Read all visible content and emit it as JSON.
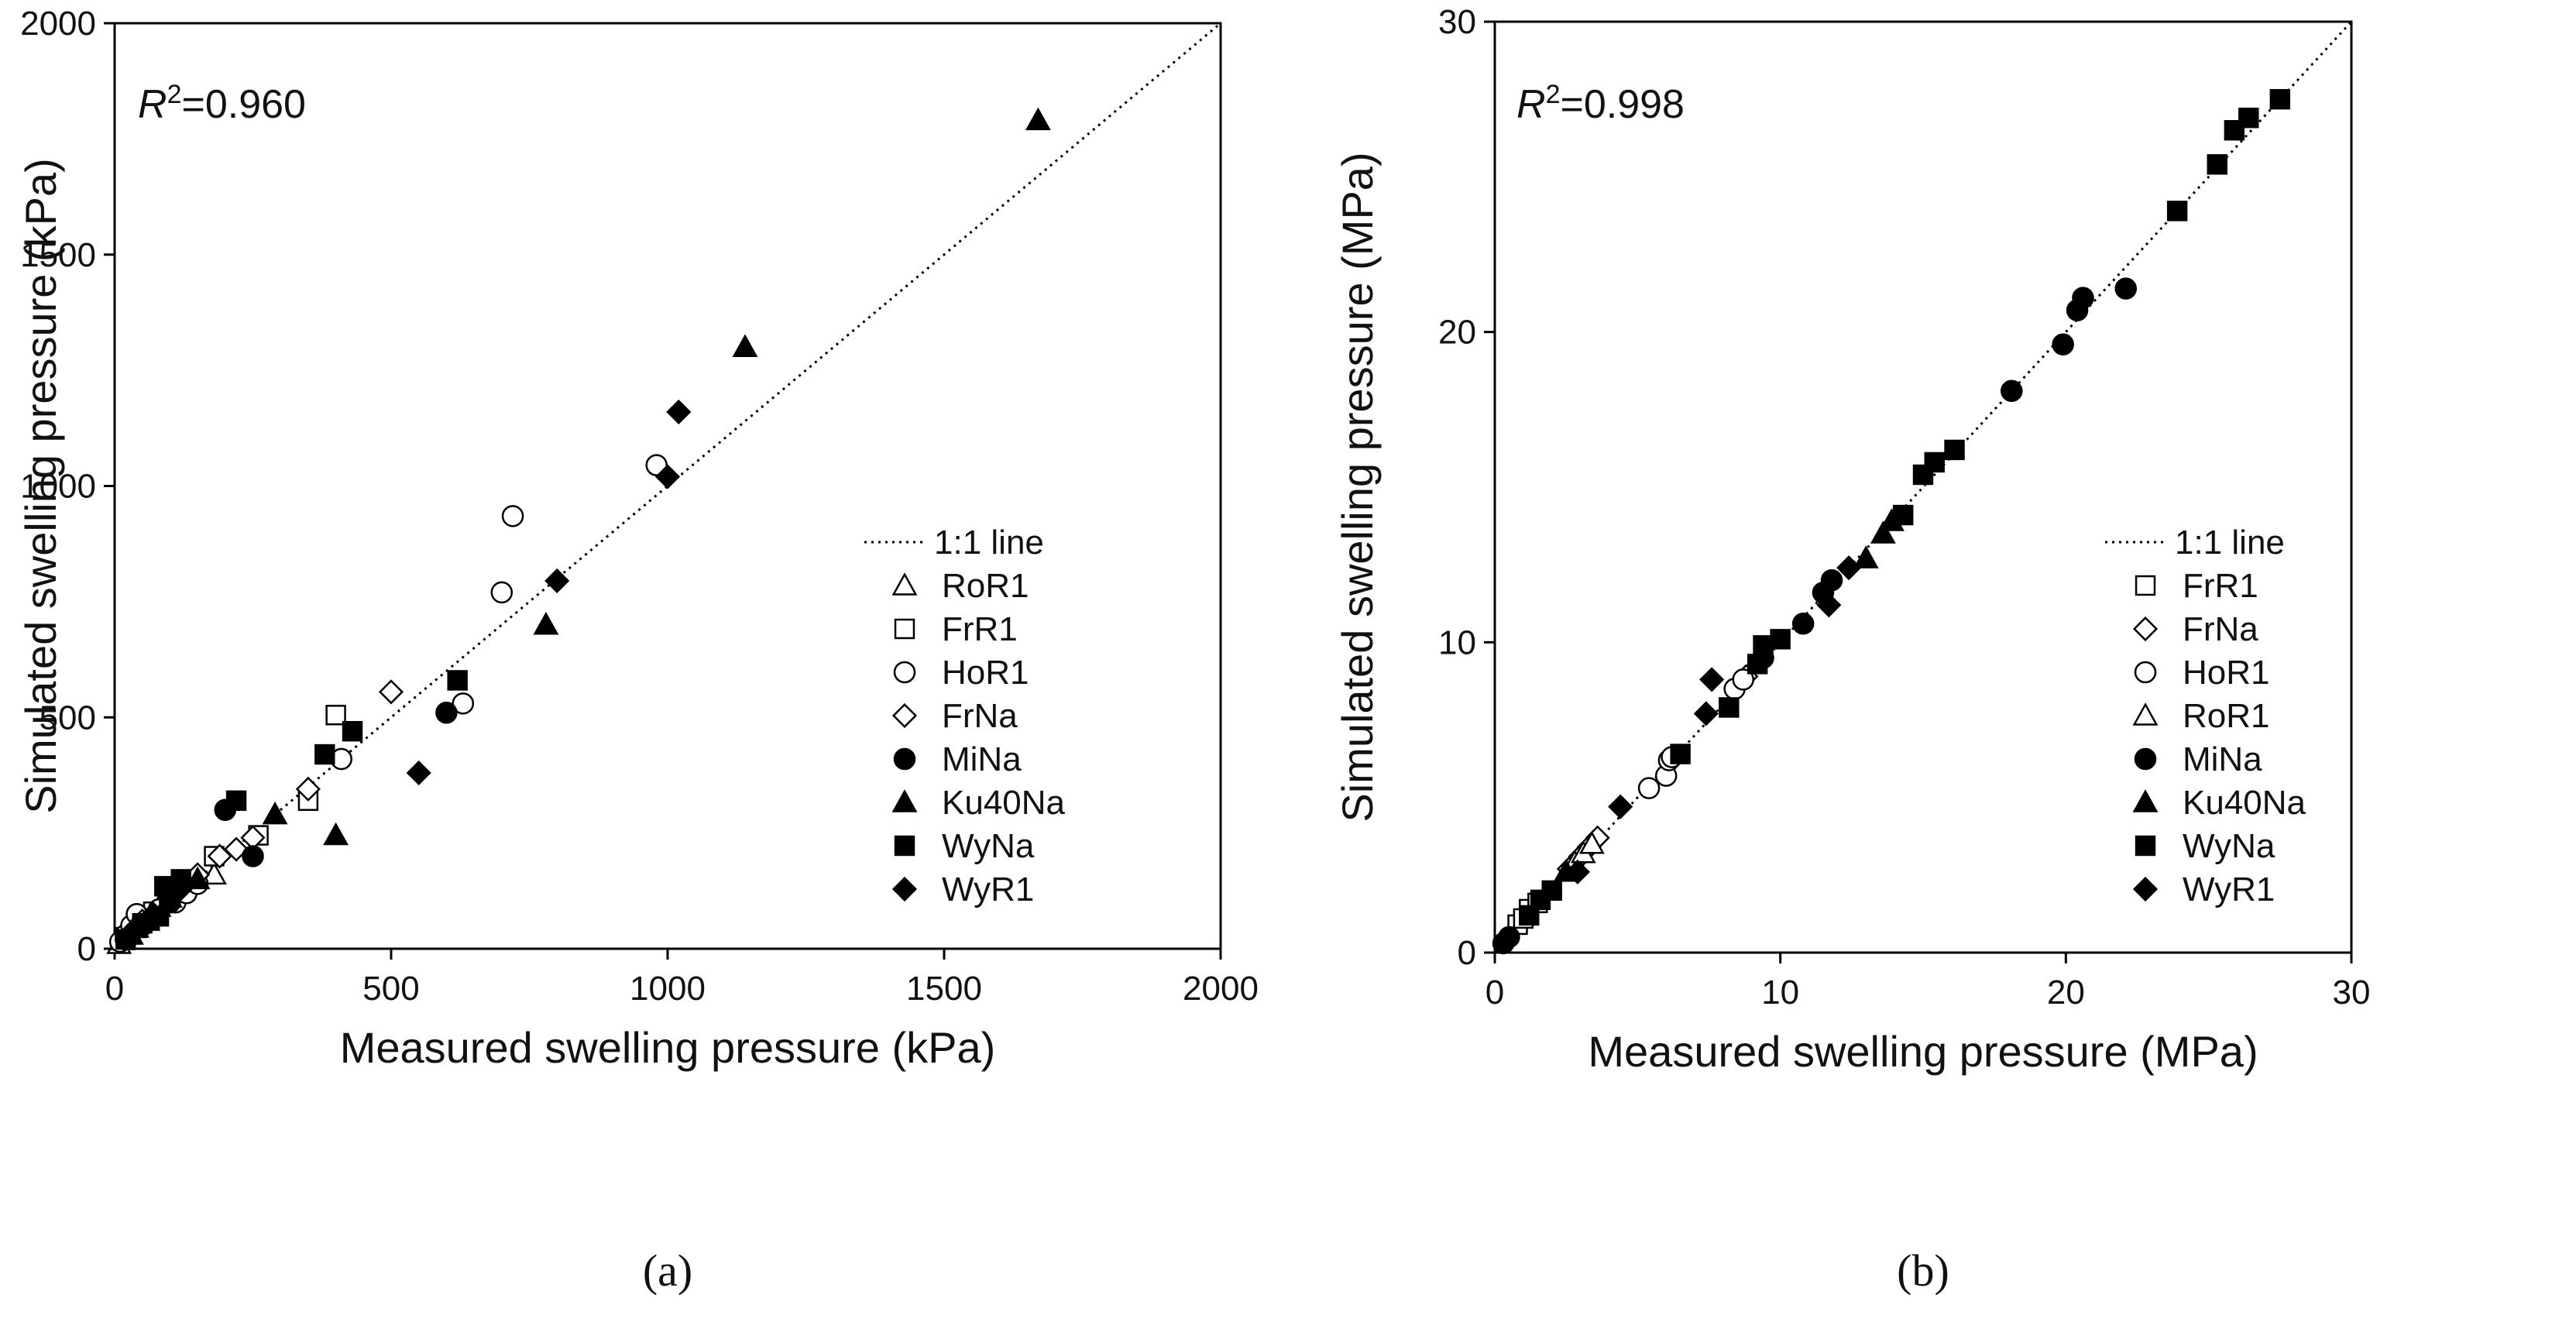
{
  "chart_data": [
    {
      "type": "scatter",
      "panel": "a",
      "caption": "(a)",
      "xlabel": "Measured swelling pressure (kPa)",
      "ylabel": "Simulated swelling pressure (kPa)",
      "xlim": [
        0,
        2000
      ],
      "ylim": [
        0,
        2000
      ],
      "xticks": [
        0,
        500,
        1000,
        1500,
        2000
      ],
      "yticks": [
        0,
        500,
        1000,
        1500,
        2000
      ],
      "r2_prefix": "R",
      "r2_sup": "2",
      "r2_value": "=0.960",
      "line_label": "1:1 line",
      "legend_position": "center-right",
      "series": [
        {
          "name": "RoR1",
          "marker": "triangle-open",
          "points": [
            [
              8,
              10
            ],
            [
              15,
              18
            ],
            [
              25,
              30
            ],
            [
              40,
              45
            ],
            [
              60,
              65
            ],
            [
              80,
              90
            ],
            [
              180,
              160
            ]
          ]
        },
        {
          "name": "FrR1",
          "marker": "square-open",
          "points": [
            [
              20,
              25
            ],
            [
              40,
              45
            ],
            [
              70,
              80
            ],
            [
              120,
              130
            ],
            [
              180,
              200
            ],
            [
              260,
              245
            ],
            [
              350,
              320
            ],
            [
              400,
              505
            ]
          ]
        },
        {
          "name": "HoR1",
          "marker": "circle-open",
          "points": [
            [
              10,
              15
            ],
            [
              20,
              30
            ],
            [
              30,
              50
            ],
            [
              40,
              75
            ],
            [
              60,
              60
            ],
            [
              80,
              85
            ],
            [
              110,
              100
            ],
            [
              130,
              120
            ],
            [
              150,
              140
            ],
            [
              410,
              410
            ],
            [
              630,
              530
            ],
            [
              700,
              770
            ],
            [
              720,
              935
            ],
            [
              980,
              1045
            ]
          ]
        },
        {
          "name": "FrNa",
          "marker": "diamond-open",
          "points": [
            [
              50,
              60
            ],
            [
              100,
              110
            ],
            [
              150,
              160
            ],
            [
              190,
              200
            ],
            [
              220,
              215
            ],
            [
              250,
              240
            ],
            [
              350,
              345
            ],
            [
              500,
              555
            ]
          ]
        },
        {
          "name": "MiNa",
          "marker": "circle-filled",
          "points": [
            [
              20,
              20
            ],
            [
              50,
              50
            ],
            [
              100,
              100
            ],
            [
              200,
              300
            ],
            [
              250,
              200
            ],
            [
              600,
              510
            ]
          ]
        },
        {
          "name": "Ku40Na",
          "marker": "triangle-filled",
          "points": [
            [
              30,
              30
            ],
            [
              60,
              60
            ],
            [
              100,
              110
            ],
            [
              150,
              150
            ],
            [
              290,
              290
            ],
            [
              400,
              245
            ],
            [
              780,
              700
            ],
            [
              1140,
              1300
            ],
            [
              1670,
              1790
            ]
          ]
        },
        {
          "name": "WyNa",
          "marker": "square-filled",
          "points": [
            [
              20,
              20
            ],
            [
              50,
              55
            ],
            [
              80,
              70
            ],
            [
              90,
              135
            ],
            [
              120,
              150
            ],
            [
              220,
              320
            ],
            [
              380,
              420
            ],
            [
              430,
              470
            ],
            [
              620,
              580
            ]
          ]
        },
        {
          "name": "WyR1",
          "marker": "diamond-filled",
          "points": [
            [
              30,
              35
            ],
            [
              70,
              75
            ],
            [
              120,
              130
            ],
            [
              550,
              380
            ],
            [
              800,
              795
            ],
            [
              1000,
              1020
            ],
            [
              1020,
              1160
            ]
          ]
        }
      ]
    },
    {
      "type": "scatter",
      "panel": "b",
      "caption": "(b)",
      "xlabel": "Measured swelling pressure (MPa)",
      "ylabel": "Simulated swelling pressure (MPa)",
      "xlim": [
        0,
        30
      ],
      "ylim": [
        0,
        30
      ],
      "xticks": [
        0,
        10,
        20,
        30
      ],
      "yticks": [
        0,
        10,
        20,
        30
      ],
      "r2_prefix": "R",
      "r2_sup": "2",
      "r2_value": "=0.998",
      "line_label": "1:1 line",
      "legend_position": "lower-right",
      "series": [
        {
          "name": "FrR1",
          "marker": "square-open",
          "points": [
            [
              0.8,
              0.9
            ],
            [
              1.0,
              1.1
            ],
            [
              1.2,
              1.4
            ],
            [
              1.5,
              1.6
            ]
          ]
        },
        {
          "name": "FrNa",
          "marker": "diamond-open",
          "points": [
            [
              2.6,
              2.7
            ],
            [
              3.0,
              3.1
            ],
            [
              3.3,
              3.4
            ],
            [
              3.6,
              3.7
            ],
            [
              8.6,
              8.7
            ],
            [
              8.8,
              8.9
            ]
          ]
        },
        {
          "name": "HoR1",
          "marker": "circle-open",
          "points": [
            [
              5.4,
              5.3
            ],
            [
              6.0,
              5.7
            ],
            [
              6.1,
              6.2
            ],
            [
              6.2,
              6.3
            ],
            [
              8.4,
              8.5
            ],
            [
              8.7,
              8.8
            ]
          ]
        },
        {
          "name": "RoR1",
          "marker": "triangle-open",
          "points": [
            [
              2.8,
              2.9
            ],
            [
              3.1,
              3.2
            ],
            [
              3.4,
              3.5
            ]
          ]
        },
        {
          "name": "MiNa",
          "marker": "circle-filled",
          "points": [
            [
              0.3,
              0.3
            ],
            [
              0.5,
              0.5
            ],
            [
              9.4,
              9.5
            ],
            [
              10.8,
              10.6
            ],
            [
              11.5,
              11.6
            ],
            [
              11.8,
              12.0
            ],
            [
              18.1,
              18.1
            ],
            [
              19.9,
              19.6
            ],
            [
              20.4,
              20.7
            ],
            [
              20.6,
              21.1
            ],
            [
              22.1,
              21.4
            ]
          ]
        },
        {
          "name": "Ku40Na",
          "marker": "triangle-filled",
          "points": [
            [
              2.5,
              2.6
            ],
            [
              13.0,
              12.7
            ],
            [
              13.6,
              13.5
            ],
            [
              13.9,
              13.9
            ]
          ]
        },
        {
          "name": "WyNa",
          "marker": "square-filled",
          "points": [
            [
              1.2,
              1.2
            ],
            [
              1.6,
              1.7
            ],
            [
              2.0,
              2.0
            ],
            [
              6.5,
              6.4
            ],
            [
              8.2,
              7.9
            ],
            [
              9.2,
              9.3
            ],
            [
              9.4,
              9.9
            ],
            [
              10.0,
              10.1
            ],
            [
              14.3,
              14.1
            ],
            [
              15.0,
              15.4
            ],
            [
              15.4,
              15.8
            ],
            [
              16.1,
              16.2
            ],
            [
              23.9,
              23.9
            ],
            [
              25.3,
              25.4
            ],
            [
              25.9,
              26.5
            ],
            [
              26.4,
              26.9
            ],
            [
              27.5,
              27.5
            ]
          ]
        },
        {
          "name": "WyR1",
          "marker": "diamond-filled",
          "points": [
            [
              2.9,
              2.6
            ],
            [
              4.4,
              4.7
            ],
            [
              7.4,
              7.7
            ],
            [
              7.6,
              8.8
            ],
            [
              12.4,
              12.4
            ],
            [
              11.7,
              11.2
            ]
          ]
        }
      ]
    }
  ]
}
